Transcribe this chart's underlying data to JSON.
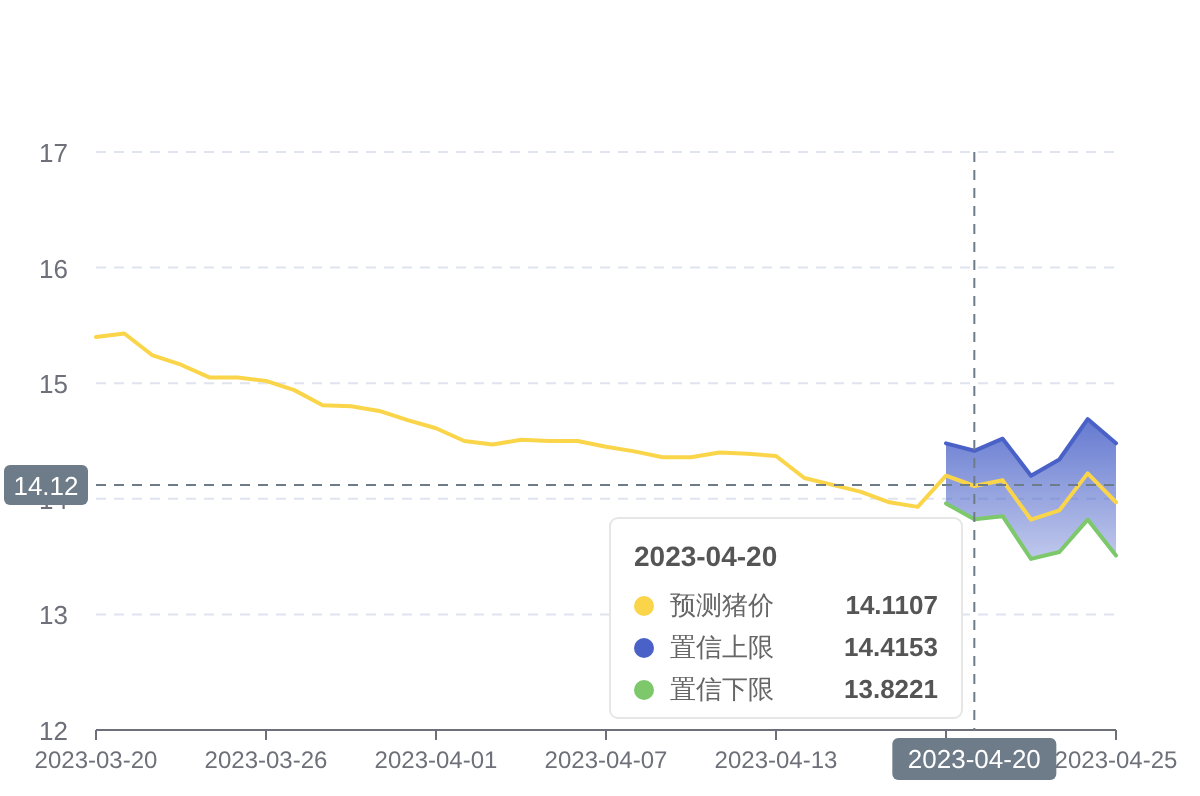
{
  "chart_data": {
    "type": "line",
    "x": [
      "2023-03-20",
      "2023-03-21",
      "2023-03-22",
      "2023-03-23",
      "2023-03-24",
      "2023-03-25",
      "2023-03-26",
      "2023-03-27",
      "2023-03-28",
      "2023-03-29",
      "2023-03-30",
      "2023-03-31",
      "2023-04-01",
      "2023-04-02",
      "2023-04-03",
      "2023-04-04",
      "2023-04-05",
      "2023-04-06",
      "2023-04-07",
      "2023-04-08",
      "2023-04-09",
      "2023-04-10",
      "2023-04-11",
      "2023-04-12",
      "2023-04-13",
      "2023-04-14",
      "2023-04-15",
      "2023-04-16",
      "2023-04-17",
      "2023-04-18",
      "2023-04-19",
      "2023-04-20",
      "2023-04-21",
      "2023-04-22",
      "2023-04-23",
      "2023-04-24",
      "2023-04-25"
    ],
    "series": [
      {
        "name": "预测猪价",
        "type": "line",
        "color": "#fad54a",
        "values": [
          15.4,
          15.43,
          15.24,
          15.16,
          15.05,
          15.05,
          15.02,
          14.94,
          14.81,
          14.8,
          14.76,
          14.68,
          14.61,
          14.5,
          14.47,
          14.51,
          14.5,
          14.5,
          14.45,
          14.41,
          14.36,
          14.36,
          14.4,
          14.39,
          14.37,
          14.18,
          14.12,
          14.06,
          13.97,
          13.93,
          14.2,
          14.1107,
          14.16,
          13.82,
          13.9,
          14.22,
          13.97
        ]
      },
      {
        "name": "置信上限",
        "type": "area",
        "color": "#4a62c8",
        "values": [
          null,
          null,
          null,
          null,
          null,
          null,
          null,
          null,
          null,
          null,
          null,
          null,
          null,
          null,
          null,
          null,
          null,
          null,
          null,
          null,
          null,
          null,
          null,
          null,
          null,
          null,
          null,
          null,
          null,
          null,
          14.48,
          14.4153,
          14.52,
          14.2,
          14.34,
          14.69,
          14.48
        ]
      },
      {
        "name": "置信下限",
        "type": "line",
        "color": "#7cc86b",
        "values": [
          null,
          null,
          null,
          null,
          null,
          null,
          null,
          null,
          null,
          null,
          null,
          null,
          null,
          null,
          null,
          null,
          null,
          null,
          null,
          null,
          null,
          null,
          null,
          null,
          null,
          null,
          null,
          null,
          null,
          null,
          13.96,
          13.8221,
          13.85,
          13.48,
          13.54,
          13.82,
          13.51
        ]
      }
    ],
    "xlim": [
      "2023-03-20",
      "2023-04-25"
    ],
    "xticks": [
      {
        "value": "2023-03-20",
        "label": "2023-03-20"
      },
      {
        "value": "2023-03-26",
        "label": "2023-03-26"
      },
      {
        "value": "2023-04-01",
        "label": "2023-04-01"
      },
      {
        "value": "2023-04-07",
        "label": "2023-04-07"
      },
      {
        "value": "2023-04-13",
        "label": "2023-04-13"
      },
      {
        "value": "2023-04-19",
        "label": null
      },
      {
        "value": "2023-04-25",
        "label": "2023-04-25"
      }
    ],
    "ylim": [
      12,
      17
    ],
    "yticks": [
      12,
      13,
      14,
      15,
      16,
      17
    ],
    "grid": "y",
    "ref_lines": [
      {
        "axis": "y",
        "value": 14.12,
        "label": "14.12",
        "color": "#6e7b88",
        "line_style": "dashed"
      },
      {
        "axis": "x",
        "value": "2023-04-20",
        "label": "2023-04-20",
        "color": "#6e7b88",
        "line_style": "dashed"
      }
    ],
    "annotations": [
      "2023-04-20",
      "14.1107",
      "14.4153",
      "13.8221"
    ],
    "legend": "bottom"
  }
}
